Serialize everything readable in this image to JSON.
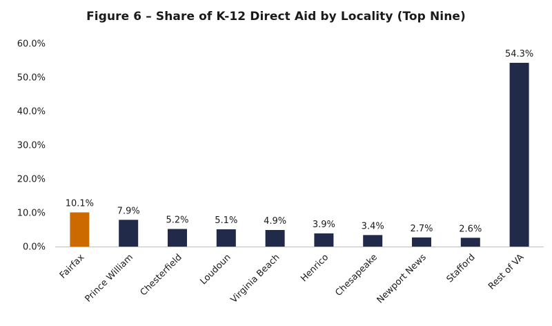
{
  "chart_data": {
    "type": "bar",
    "title": "Figure 6 – Share of K-12 Direct Aid by Locality (Top Nine)",
    "xlabel": "",
    "ylabel": "",
    "ylim": [
      0,
      60
    ],
    "yticks": [
      0,
      10,
      20,
      30,
      40,
      50,
      60
    ],
    "ytick_labels": [
      "0.0%",
      "10.0%",
      "20.0%",
      "30.0%",
      "40.0%",
      "50.0%",
      "60.0%"
    ],
    "grid": false,
    "legend": "none",
    "categories": [
      "Fairfax",
      "Prince William",
      "Chesterfield",
      "Loudoun",
      "Virginia Beach",
      "Henrico",
      "Chesapeake",
      "Newport News",
      "Stafford",
      "Rest of VA"
    ],
    "values": [
      10.1,
      7.9,
      5.2,
      5.1,
      4.9,
      3.9,
      3.4,
      2.7,
      2.6,
      54.3
    ],
    "value_labels": [
      "10.1%",
      "7.9%",
      "5.2%",
      "5.1%",
      "4.9%",
      "3.9%",
      "3.4%",
      "2.7%",
      "2.6%",
      "54.3%"
    ],
    "colors": [
      "#cc6a00",
      "#222a4a",
      "#222a4a",
      "#222a4a",
      "#222a4a",
      "#222a4a",
      "#222a4a",
      "#222a4a",
      "#222a4a",
      "#222a4a"
    ],
    "axis_color": "#bfbfbf"
  }
}
